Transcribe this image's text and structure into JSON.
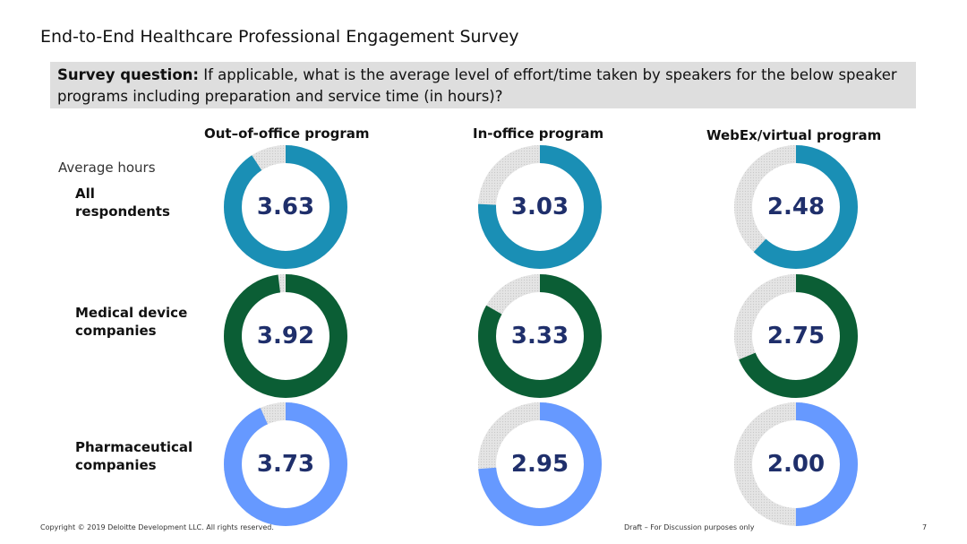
{
  "page": {
    "title": "End-to-End Healthcare Professional Engagement Survey",
    "question_bold": "Survey question:",
    "question_text": " If applicable, what is the average level of effort/time taken by speakers for the below speaker programs including preparation and service time (in hours)?",
    "avg_label": "Average hours",
    "footer_left": "Copyright © 2019 Deloitte Development LLC. All rights reserved.",
    "footer_center": "Draft – For Discussion purposes only",
    "page_number": "7"
  },
  "colors": {
    "all_respondents": "#1a8fb5",
    "medical_device": "#0b5e35",
    "pharmaceutical": "#6699ff",
    "remainder": "#e4e4e4",
    "value_text": "#1f2f6b"
  },
  "chart_data": {
    "type": "donut",
    "max_value": 4,
    "categories": [
      "Out–of-office program",
      "In-office program",
      "WebEx/virtual program"
    ],
    "series": [
      {
        "name": "All respondents",
        "color_key": "all_respondents",
        "values": [
          3.63,
          3.03,
          2.48
        ]
      },
      {
        "name": "Medical device companies",
        "color_key": "medical_device",
        "values": [
          3.92,
          3.33,
          2.75
        ]
      },
      {
        "name": "Pharmaceutical companies",
        "color_key": "pharmaceutical",
        "values": [
          3.73,
          2.95,
          2.0
        ]
      }
    ]
  }
}
